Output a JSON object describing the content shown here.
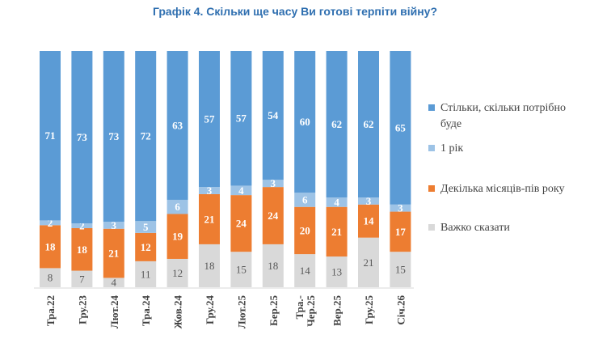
{
  "chart_data": {
    "type": "bar",
    "stacked": true,
    "title": "Графік 4. Скільки ще часу Ви готові терпіти війну?",
    "categories": [
      "Тра.22",
      "Гру.23",
      "Лют.24",
      "Тра.24",
      "Жов.24",
      "Гру.24",
      "Лют.25",
      "Бер.25",
      "Тра.-Чер.25",
      "Вер.25",
      "Гру.25",
      "Січ.26"
    ],
    "series": [
      {
        "name": "Важко сказати",
        "color": "#d9d9d9",
        "label_color": "#595959",
        "values": [
          8,
          7,
          4,
          11,
          12,
          18,
          15,
          18,
          14,
          13,
          21,
          15
        ]
      },
      {
        "name": "Декілька місяців-пів року",
        "color": "#ed7d31",
        "label_color": "#ffffff",
        "values": [
          18,
          18,
          21,
          12,
          19,
          21,
          24,
          24,
          20,
          21,
          14,
          17
        ]
      },
      {
        "name": "1 рік",
        "color": "#9dc3e6",
        "label_color": "#ffffff",
        "values": [
          2,
          2,
          3,
          5,
          6,
          3,
          4,
          3,
          6,
          4,
          3,
          3
        ]
      },
      {
        "name": "Стільки, скільки потрібно буде",
        "color": "#5b9bd5",
        "label_color": "#ffffff",
        "values": [
          71,
          73,
          73,
          72,
          63,
          57,
          57,
          54,
          60,
          62,
          62,
          65
        ]
      }
    ],
    "legend": {
      "position": "right",
      "order": [
        "Стільки, скільки потрібно буде",
        "1 рік",
        "Декілька місяців-пів року",
        "Важко сказати"
      ]
    },
    "grid": false
  }
}
